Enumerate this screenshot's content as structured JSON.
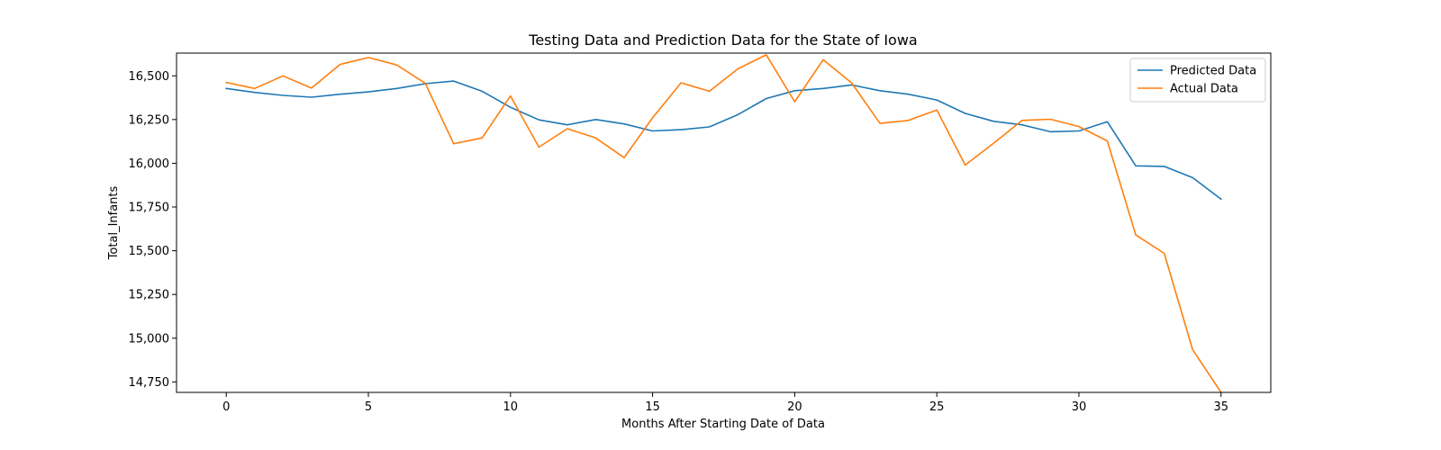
{
  "chart_data": {
    "type": "line",
    "title": "Testing Data and Prediction Data for the State of Iowa",
    "xlabel": "Months After Starting Date of Data",
    "ylabel": "Total_Infants",
    "xlim": [
      -1.75,
      36.75
    ],
    "ylim": [
      14690,
      16630
    ],
    "xticks": [
      0,
      5,
      10,
      15,
      20,
      25,
      30,
      35
    ],
    "xtick_labels": [
      "0",
      "5",
      "10",
      "15",
      "20",
      "25",
      "30",
      "35"
    ],
    "yticks": [
      14750,
      15000,
      15250,
      15500,
      15750,
      16000,
      16250,
      16500
    ],
    "ytick_labels": [
      "14,750",
      "15,000",
      "15,250",
      "15,500",
      "15,750",
      "16,000",
      "16,250",
      "16,500"
    ],
    "grid": false,
    "legend_position": "top-right",
    "x": [
      0,
      1,
      2,
      3,
      4,
      5,
      6,
      7,
      8,
      9,
      10,
      11,
      12,
      13,
      14,
      15,
      16,
      17,
      18,
      19,
      20,
      21,
      22,
      23,
      24,
      25,
      26,
      27,
      28,
      29,
      30,
      31,
      32,
      33,
      34,
      35
    ],
    "series": [
      {
        "name": "Predicted Data",
        "color": "#1f77b4",
        "values": [
          16428,
          16405,
          16388,
          16378,
          16395,
          16408,
          16428,
          16455,
          16470,
          16412,
          16320,
          16248,
          16220,
          16250,
          16225,
          16185,
          16192,
          16208,
          16278,
          16370,
          16415,
          16428,
          16448,
          16415,
          16395,
          16362,
          16285,
          16240,
          16220,
          16180,
          16185,
          16238,
          15985,
          15982,
          15918,
          15795
        ]
      },
      {
        "name": "Actual Data",
        "color": "#ff7f0e",
        "values": [
          16462,
          16428,
          16500,
          16430,
          16565,
          16605,
          16562,
          16458,
          16112,
          16145,
          16385,
          16092,
          16198,
          16145,
          16032,
          16260,
          16460,
          16412,
          16540,
          16620,
          16352,
          16592,
          16460,
          16228,
          16245,
          16305,
          15990,
          16115,
          16245,
          16252,
          16210,
          16128,
          15590,
          15485,
          14935,
          14690
        ]
      }
    ]
  }
}
